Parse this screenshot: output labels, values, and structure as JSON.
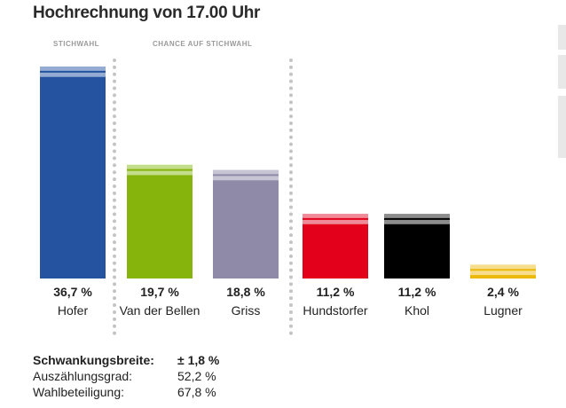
{
  "title": "Hochrechnung von 17.00 Uhr",
  "sections": {
    "stichwahl": "STICHWAHL",
    "chance": "CHANCE AUF STICHWAHL"
  },
  "chart_data": {
    "type": "bar",
    "title": "Hochrechnung von 17.00 Uhr",
    "categories": [
      "Hofer",
      "Van der Bellen",
      "Griss",
      "Hundstorfer",
      "Khol",
      "Lugner"
    ],
    "values": [
      36.7,
      19.7,
      18.8,
      11.2,
      11.2,
      2.4
    ],
    "value_labels": [
      "36,7 %",
      "19,7 %",
      "18,8 %",
      "11,2 %",
      "11,2 %",
      "2,4 %"
    ],
    "error_margin": 1.8,
    "colors": [
      "#2553a0",
      "#86b30c",
      "#8f8aa8",
      "#e2001a",
      "#000000",
      "#ecb90a"
    ],
    "light_colors": [
      "#94acd4",
      "#c3de8a",
      "#c7c4d4",
      "#f08a98",
      "#8c8c8c",
      "#f7de8e"
    ],
    "ylim": [
      0,
      36.7
    ],
    "xlabel": "",
    "ylabel": "",
    "groups": [
      "STICHWAHL",
      "CHANCE AUF STICHWAHL"
    ]
  },
  "stats": {
    "margin_label": "Schwankungsbreite:",
    "margin_value": "± 1,8 %",
    "count_label": "Auszählungsgrad:",
    "count_value": "52,2 %",
    "turnout_label": "Wahlbeteiligung:",
    "turnout_value": "67,8 %"
  }
}
